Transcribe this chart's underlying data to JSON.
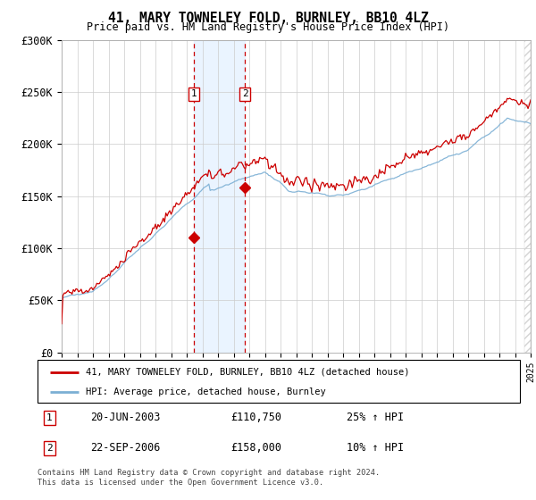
{
  "title": "41, MARY TOWNELEY FOLD, BURNLEY, BB10 4LZ",
  "subtitle": "Price paid vs. HM Land Registry's House Price Index (HPI)",
  "ylim": [
    0,
    300000
  ],
  "yticks": [
    0,
    50000,
    100000,
    150000,
    200000,
    250000,
    300000
  ],
  "ytick_labels": [
    "£0",
    "£50K",
    "£100K",
    "£150K",
    "£200K",
    "£250K",
    "£300K"
  ],
  "sale1_date": "20-JUN-2003",
  "sale1_price": 110750,
  "sale1_hpi_str": "25% ↑ HPI",
  "sale1_price_str": "£110,750",
  "sale1_year": 2003.47,
  "sale2_date": "22-SEP-2006",
  "sale2_price": 158000,
  "sale2_hpi_str": "10% ↑ HPI",
  "sale2_price_str": "£158,000",
  "sale2_year": 2006.72,
  "hpi_color": "#7bafd4",
  "price_color": "#cc0000",
  "shade_color": "#ddeeff",
  "legend_label1": "41, MARY TOWNELEY FOLD, BURNLEY, BB10 4LZ (detached house)",
  "legend_label2": "HPI: Average price, detached house, Burnley",
  "footer": "Contains HM Land Registry data © Crown copyright and database right 2024.\nThis data is licensed under the Open Government Licence v3.0."
}
